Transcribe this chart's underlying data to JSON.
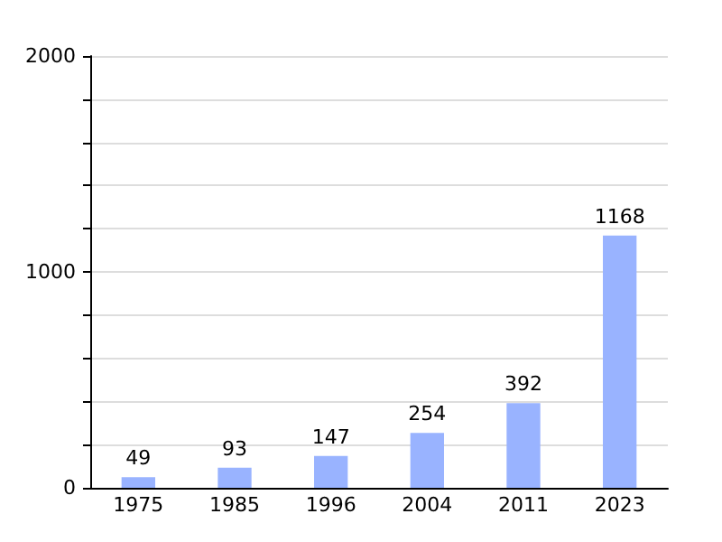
{
  "chart_data": {
    "type": "bar",
    "categories": [
      "1975",
      "1985",
      "1996",
      "2004",
      "2011",
      "2023"
    ],
    "values": [
      49,
      93,
      147,
      254,
      392,
      1168
    ],
    "color": "#99b3ff",
    "ylim": [
      0,
      2000
    ],
    "yticks": [
      0,
      {
        "value": 200,
        "label": null
      },
      {
        "value": 400,
        "label": null
      },
      {
        "value": 600,
        "label": null
      },
      {
        "value": 800,
        "label": null
      },
      1000,
      {
        "value": 1200,
        "label": null
      },
      {
        "value": 1400,
        "label": null
      },
      {
        "value": 1600,
        "label": null
      },
      {
        "value": 1800,
        "label": null
      },
      2000
    ],
    "grid": "y",
    "data_labels": true
  }
}
